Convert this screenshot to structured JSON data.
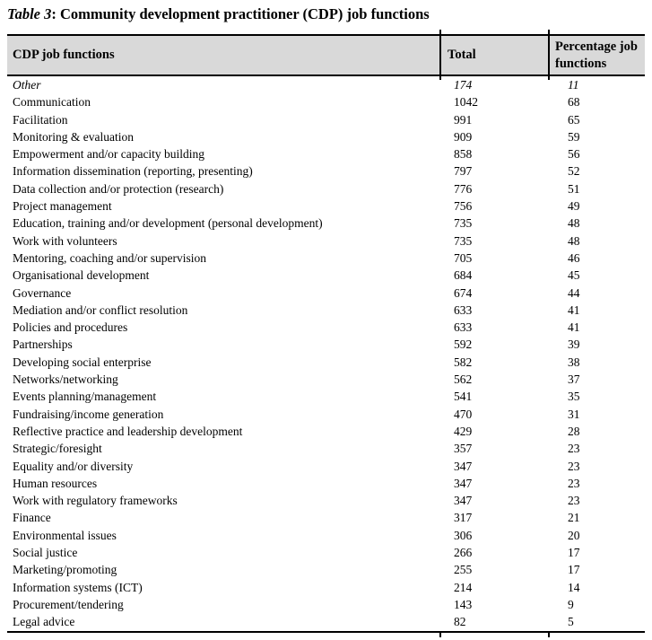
{
  "caption": {
    "prefix": "Table 3",
    "rest": ": Community development practitioner (CDP) job functions"
  },
  "table": {
    "columns": [
      "CDP job functions",
      "Total",
      "Percentage job functions"
    ],
    "rows": [
      {
        "function": "Other",
        "total": "174",
        "percentage": "11",
        "italic": true
      },
      {
        "function": "Communication",
        "total": "1042",
        "percentage": "68"
      },
      {
        "function": "Facilitation",
        "total": "991",
        "percentage": "65"
      },
      {
        "function": "Monitoring & evaluation",
        "total": "909",
        "percentage": "59"
      },
      {
        "function": "Empowerment and/or capacity building",
        "total": "858",
        "percentage": "56"
      },
      {
        "function": "Information dissemination (reporting, presenting)",
        "total": "797",
        "percentage": "52"
      },
      {
        "function": "Data collection and/or protection (research)",
        "total": "776",
        "percentage": "51"
      },
      {
        "function": "Project management",
        "total": "756",
        "percentage": "49"
      },
      {
        "function": "Education, training and/or development (personal development)",
        "total": "735",
        "percentage": "48"
      },
      {
        "function": "Work with volunteers",
        "total": "735",
        "percentage": "48"
      },
      {
        "function": "Mentoring, coaching and/or supervision",
        "total": "705",
        "percentage": "46"
      },
      {
        "function": "Organisational development",
        "total": "684",
        "percentage": "45"
      },
      {
        "function": "Governance",
        "total": "674",
        "percentage": "44"
      },
      {
        "function": "Mediation and/or conflict resolution",
        "total": "633",
        "percentage": "41"
      },
      {
        "function": "Policies and procedures",
        "total": "633",
        "percentage": "41"
      },
      {
        "function": "Partnerships",
        "total": "592",
        "percentage": "39"
      },
      {
        "function": "Developing social enterprise",
        "total": "582",
        "percentage": "38"
      },
      {
        "function": "Networks/networking",
        "total": "562",
        "percentage": "37"
      },
      {
        "function": "Events planning/management",
        "total": "541",
        "percentage": "35"
      },
      {
        "function": "Fundraising/income generation",
        "total": "470",
        "percentage": "31"
      },
      {
        "function": "Reflective practice and leadership development",
        "total": "429",
        "percentage": "28"
      },
      {
        "function": "Strategic/foresight",
        "total": "357",
        "percentage": "23"
      },
      {
        "function": "Equality and/or diversity",
        "total": "347",
        "percentage": "23"
      },
      {
        "function": "Human resources",
        "total": "347",
        "percentage": "23"
      },
      {
        "function": "Work with regulatory frameworks",
        "total": "347",
        "percentage": "23"
      },
      {
        "function": "Finance",
        "total": "317",
        "percentage": "21"
      },
      {
        "function": "Environmental issues",
        "total": "306",
        "percentage": "20"
      },
      {
        "function": "Social justice",
        "total": "266",
        "percentage": "17"
      },
      {
        "function": "Marketing/promoting",
        "total": "255",
        "percentage": "17"
      },
      {
        "function": "Information systems (ICT)",
        "total": "214",
        "percentage": "14"
      },
      {
        "function": "Procurement/tendering",
        "total": "143",
        "percentage": "9"
      },
      {
        "function": "Legal advice",
        "total": "82",
        "percentage": "5"
      }
    ]
  },
  "colors": {
    "header_background": "#d9d9d9",
    "border": "#000000",
    "text": "#000000"
  }
}
